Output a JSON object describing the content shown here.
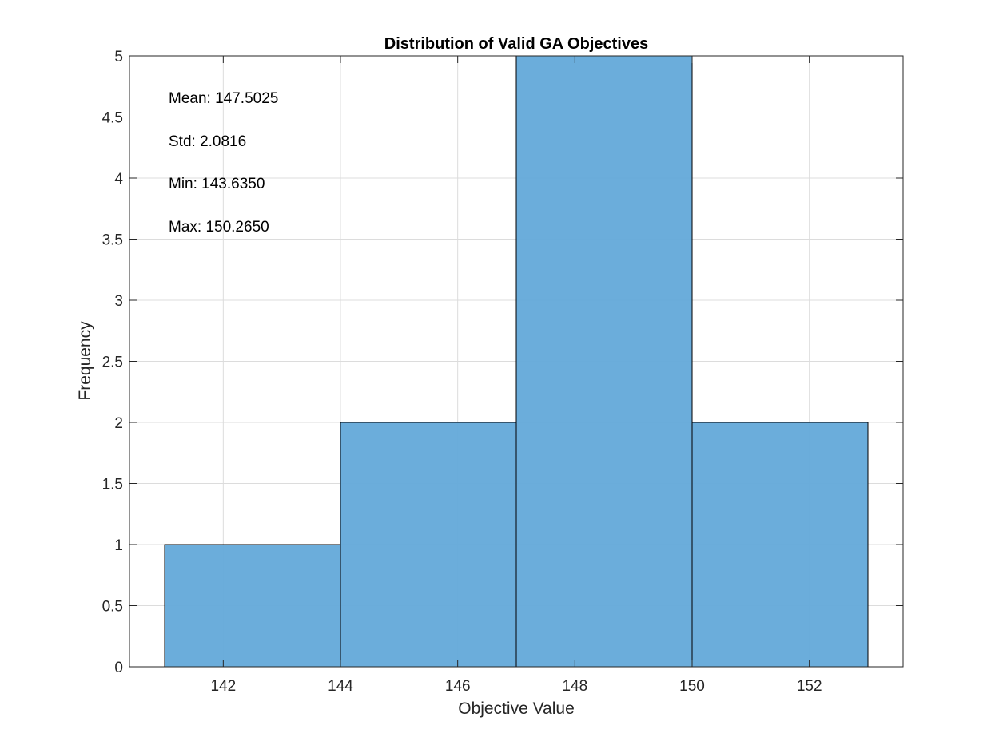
{
  "chart_data": {
    "type": "bar",
    "subtype": "histogram",
    "title": "Distribution of Valid GA Objectives",
    "xlabel": "Objective Value",
    "ylabel": "Frequency",
    "bin_edges": [
      141,
      144,
      147,
      150,
      153
    ],
    "values": [
      1,
      2,
      5,
      2
    ],
    "xlim": [
      140.4,
      153.6
    ],
    "ylim": [
      0,
      5
    ],
    "xticks": [
      142,
      144,
      146,
      148,
      150,
      152
    ],
    "xtick_labels": [
      "142",
      "144",
      "146",
      "148",
      "150",
      "152"
    ],
    "yticks": [
      0,
      0.5,
      1,
      1.5,
      2,
      2.5,
      3,
      3.5,
      4,
      4.5,
      5
    ],
    "ytick_labels": [
      "0",
      "0.5",
      "1",
      "1.5",
      "2",
      "2.5",
      "3",
      "3.5",
      "4",
      "4.5",
      "5"
    ],
    "grid": true,
    "bar_color": "#66AADA",
    "bar_edge_color": "#000000",
    "annotations": [
      "Mean: 147.5025",
      "Std: 2.0816",
      "Min: 143.6350",
      "Max: 150.2650"
    ]
  }
}
